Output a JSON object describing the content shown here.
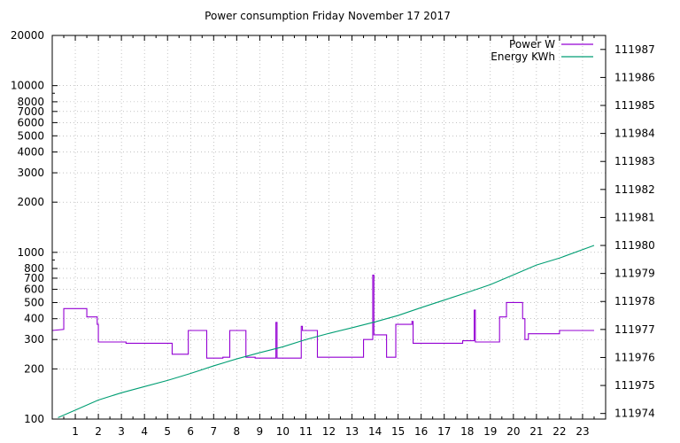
{
  "title": "Power consumption Friday November 17 2017",
  "colors": {
    "power": "#9400d3",
    "energy": "#009e73",
    "grid": "#a0a0a0",
    "axis": "#000000"
  },
  "chart_data": {
    "type": "line",
    "title": "Power consumption Friday November 17 2017",
    "x_axis": {
      "range": [
        0,
        24
      ],
      "ticks": [
        1,
        2,
        3,
        4,
        5,
        6,
        7,
        8,
        9,
        10,
        11,
        12,
        13,
        14,
        15,
        16,
        17,
        18,
        19,
        20,
        21,
        22,
        23
      ],
      "tick_labels": [
        "1",
        "2",
        "3",
        "4",
        "5",
        "6",
        "7",
        "8",
        "9",
        "10",
        "11",
        "12",
        "13",
        "14",
        "15",
        "16",
        "17",
        "18",
        "19",
        "20",
        "21",
        "22",
        "23"
      ],
      "grid": true
    },
    "y_axis_left": {
      "scale": "log",
      "range": [
        100,
        20000
      ],
      "ticks": [
        100,
        200,
        300,
        400,
        500,
        600,
        700,
        800,
        1000,
        2000,
        3000,
        4000,
        5000,
        6000,
        7000,
        8000,
        10000,
        20000
      ],
      "tick_labels": [
        "100",
        "200",
        "300",
        "400",
        "500",
        "600",
        "700",
        "800",
        "1000",
        "2000",
        "3000",
        "4000",
        "5000",
        "6000",
        "7000",
        "8000",
        "10000",
        "20000"
      ],
      "grid": true
    },
    "y_axis_right": {
      "scale": "log",
      "range": [
        111973.8,
        111987.5
      ],
      "ticks": [
        111974,
        111975,
        111976,
        111977,
        111978,
        111979,
        111980,
        111981,
        111982,
        111983,
        111984,
        111985,
        111986,
        111987
      ],
      "tick_labels": [
        "111974",
        "111975",
        "111976",
        "111977",
        "111978",
        "111979",
        "111980",
        "111981",
        "111982",
        "111983",
        "111984",
        "111985",
        "111986",
        "111987"
      ]
    },
    "legend": {
      "placement": "top-right",
      "entries": [
        "Power W",
        "Energy KWh"
      ]
    },
    "series": [
      {
        "name": "Power W",
        "axis": "left",
        "step": true,
        "points": [
          [
            0,
            340
          ],
          [
            0.5,
            345
          ],
          [
            0.5,
            460
          ],
          [
            1.5,
            460
          ],
          [
            1.5,
            410
          ],
          [
            1.95,
            410
          ],
          [
            1.95,
            370
          ],
          [
            2.0,
            370
          ],
          [
            2.0,
            290
          ],
          [
            3.2,
            290
          ],
          [
            3.2,
            285
          ],
          [
            5.2,
            285
          ],
          [
            5.2,
            245
          ],
          [
            5.9,
            245
          ],
          [
            5.9,
            340
          ],
          [
            6.7,
            340
          ],
          [
            6.7,
            232
          ],
          [
            7.4,
            232
          ],
          [
            7.4,
            235
          ],
          [
            7.7,
            235
          ],
          [
            7.7,
            340
          ],
          [
            8.4,
            340
          ],
          [
            8.4,
            235
          ],
          [
            8.8,
            235
          ],
          [
            8.8,
            232
          ],
          [
            9.7,
            232
          ],
          [
            9.7,
            380
          ],
          [
            9.75,
            380
          ],
          [
            9.75,
            232
          ],
          [
            10.8,
            232
          ],
          [
            10.8,
            360
          ],
          [
            10.85,
            360
          ],
          [
            10.85,
            340
          ],
          [
            11.5,
            340
          ],
          [
            11.5,
            235
          ],
          [
            13.5,
            235
          ],
          [
            13.5,
            300
          ],
          [
            13.9,
            300
          ],
          [
            13.9,
            730
          ],
          [
            13.95,
            730
          ],
          [
            13.95,
            320
          ],
          [
            14.5,
            320
          ],
          [
            14.5,
            235
          ],
          [
            14.9,
            235
          ],
          [
            14.9,
            370
          ],
          [
            15.6,
            370
          ],
          [
            15.6,
            385
          ],
          [
            15.65,
            385
          ],
          [
            15.65,
            285
          ],
          [
            17.8,
            285
          ],
          [
            17.8,
            295
          ],
          [
            18.3,
            295
          ],
          [
            18.3,
            450
          ],
          [
            18.35,
            450
          ],
          [
            18.35,
            290
          ],
          [
            19.4,
            290
          ],
          [
            19.4,
            410
          ],
          [
            19.7,
            410
          ],
          [
            19.7,
            500
          ],
          [
            20.4,
            500
          ],
          [
            20.4,
            400
          ],
          [
            20.5,
            400
          ],
          [
            20.5,
            300
          ],
          [
            20.65,
            300
          ],
          [
            20.65,
            325
          ],
          [
            22.0,
            325
          ],
          [
            22.0,
            340
          ],
          [
            23.5,
            340
          ]
        ]
      },
      {
        "name": "Energy KWh",
        "axis": "right",
        "step": false,
        "points": [
          [
            0.25,
            111973.85
          ],
          [
            1.0,
            111974.12
          ],
          [
            2.0,
            111974.48
          ],
          [
            3.0,
            111974.74
          ],
          [
            4.0,
            111974.96
          ],
          [
            5.0,
            111975.18
          ],
          [
            6.0,
            111975.43
          ],
          [
            7.0,
            111975.7
          ],
          [
            8.0,
            111975.95
          ],
          [
            9.0,
            111976.17
          ],
          [
            10.0,
            111976.38
          ],
          [
            11.0,
            111976.64
          ],
          [
            12.0,
            111976.86
          ],
          [
            13.0,
            111977.06
          ],
          [
            14.0,
            111977.27
          ],
          [
            15.0,
            111977.5
          ],
          [
            16.0,
            111977.78
          ],
          [
            17.0,
            111978.05
          ],
          [
            18.0,
            111978.32
          ],
          [
            19.0,
            111978.6
          ],
          [
            20.0,
            111978.95
          ],
          [
            21.0,
            111979.3
          ],
          [
            22.0,
            111979.55
          ],
          [
            23.5,
            111980.0
          ]
        ]
      }
    ]
  }
}
